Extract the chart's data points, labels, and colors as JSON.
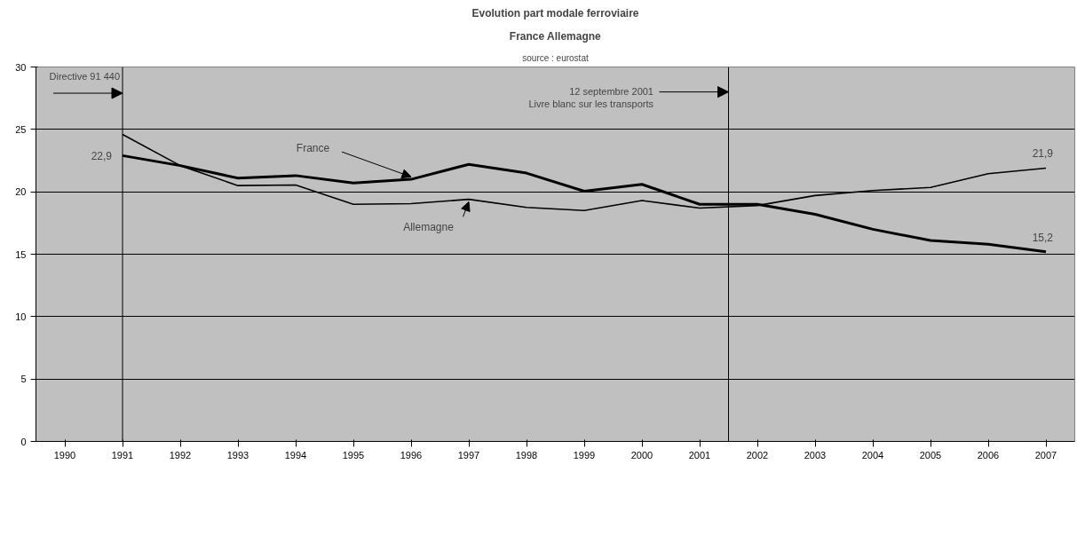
{
  "chart_data": {
    "type": "line",
    "title": "Evolution part modale ferroviaire",
    "subtitle": "France Allemagne",
    "annotations": [
      "source : eurostat"
    ],
    "x": [
      1991,
      1992,
      1993,
      1994,
      1995,
      1996,
      1997,
      1998,
      1999,
      2000,
      2001,
      2002,
      2003,
      2004,
      2005,
      2006,
      2007
    ],
    "xlim": [
      1989.5,
      2007.5
    ],
    "xticks": [
      1990,
      1991,
      1992,
      1993,
      1994,
      1995,
      1996,
      1997,
      1998,
      1999,
      2000,
      2001,
      2002,
      2003,
      2004,
      2005,
      2006,
      2007
    ],
    "ylim": [
      0,
      30
    ],
    "yticks": [
      0,
      5,
      10,
      15,
      20,
      25,
      30
    ],
    "grid": "y",
    "series": [
      {
        "name": "France",
        "color": "#000000",
        "values": [
          22.9,
          22.1,
          21.1,
          21.3,
          20.7,
          21.0,
          22.2,
          21.5,
          20.05,
          20.6,
          19.0,
          19.0,
          18.2,
          17.0,
          16.1,
          15.8,
          15.2
        ],
        "value_labels": [
          "22,9",
          null,
          null,
          null,
          null,
          null,
          null,
          null,
          null,
          null,
          null,
          null,
          null,
          null,
          null,
          null,
          "15,2"
        ]
      },
      {
        "name": "Allemagne",
        "color": "#000000",
        "values": [
          24.6,
          22.1,
          20.5,
          20.55,
          19.0,
          19.05,
          19.4,
          18.75,
          18.5,
          19.3,
          18.7,
          18.9,
          19.7,
          20.1,
          20.35,
          21.45,
          21.9
        ],
        "value_labels": [
          null,
          null,
          null,
          null,
          null,
          null,
          null,
          null,
          null,
          null,
          null,
          null,
          null,
          null,
          null,
          null,
          "21,9"
        ]
      }
    ],
    "ref_lines": [
      {
        "axis": "x",
        "value": 1991,
        "label": "Directive 91 440",
        "color": "#000000"
      },
      {
        "axis": "x",
        "value": 2001.5,
        "label": "12 septembre 2001\nLivre blanc sur les transports",
        "color": "#000000"
      }
    ]
  }
}
